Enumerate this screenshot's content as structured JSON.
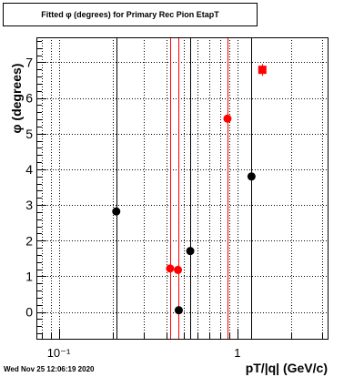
{
  "title_text": "Fitted φ (degrees) for Primary Rec Pion EtapT",
  "timestamp": "Wed Nov 25 12:06:19 2020",
  "colors": {
    "black_series": "#000000",
    "red_series": "#ff0000",
    "grid": "#000000"
  },
  "chart_data": {
    "type": "scatter",
    "title": "Fitted φ (degrees) for Primary Rec Pion EtapT",
    "xlabel": "pT/|q| (GeV/c)",
    "ylabel": "φ (degrees)",
    "xscale": "log",
    "xlim": [
      0.075,
      3.2
    ],
    "ylim": [
      -0.75,
      7.7
    ],
    "grid": true,
    "x_ticks": [
      {
        "value": 0.1,
        "label": "10⁻¹"
      },
      {
        "value": 1,
        "label": "1"
      }
    ],
    "y_ticks": [
      {
        "value": 0,
        "label": "0"
      },
      {
        "value": 1,
        "label": "1"
      },
      {
        "value": 2,
        "label": "2"
      },
      {
        "value": 3,
        "label": "3"
      },
      {
        "value": 4,
        "label": "4"
      },
      {
        "value": 5,
        "label": "5"
      },
      {
        "value": 6,
        "label": "6"
      },
      {
        "value": 7,
        "label": "7"
      }
    ],
    "series": [
      {
        "color": "#000000",
        "marker": "circle",
        "points": [
          {
            "x": 0.21,
            "y": 2.82,
            "ylow": -0.75,
            "yhigh": 7.7
          },
          {
            "x": 0.47,
            "y": 0.05,
            "ylow": -0.75,
            "yhigh": 7.7
          },
          {
            "x": 0.545,
            "y": 1.71,
            "ylow": -0.75,
            "yhigh": 7.7
          },
          {
            "x": 1.2,
            "y": 3.8,
            "ylow": -0.75,
            "yhigh": 7.7
          }
        ]
      },
      {
        "color": "#ff0000",
        "marker": "circle",
        "points": [
          {
            "x": 0.42,
            "y": 1.22,
            "ylow": -0.75,
            "yhigh": 7.7
          },
          {
            "x": 0.465,
            "y": 1.18,
            "ylow": -0.75,
            "yhigh": 7.7
          },
          {
            "x": 0.88,
            "y": 5.42,
            "ylow": -0.75,
            "yhigh": 7.7
          }
        ]
      },
      {
        "color": "#ff0000",
        "marker": "square",
        "points": [
          {
            "x": 1.38,
            "y": 6.79,
            "ylow": 6.62,
            "yhigh": 6.95
          }
        ]
      }
    ]
  }
}
